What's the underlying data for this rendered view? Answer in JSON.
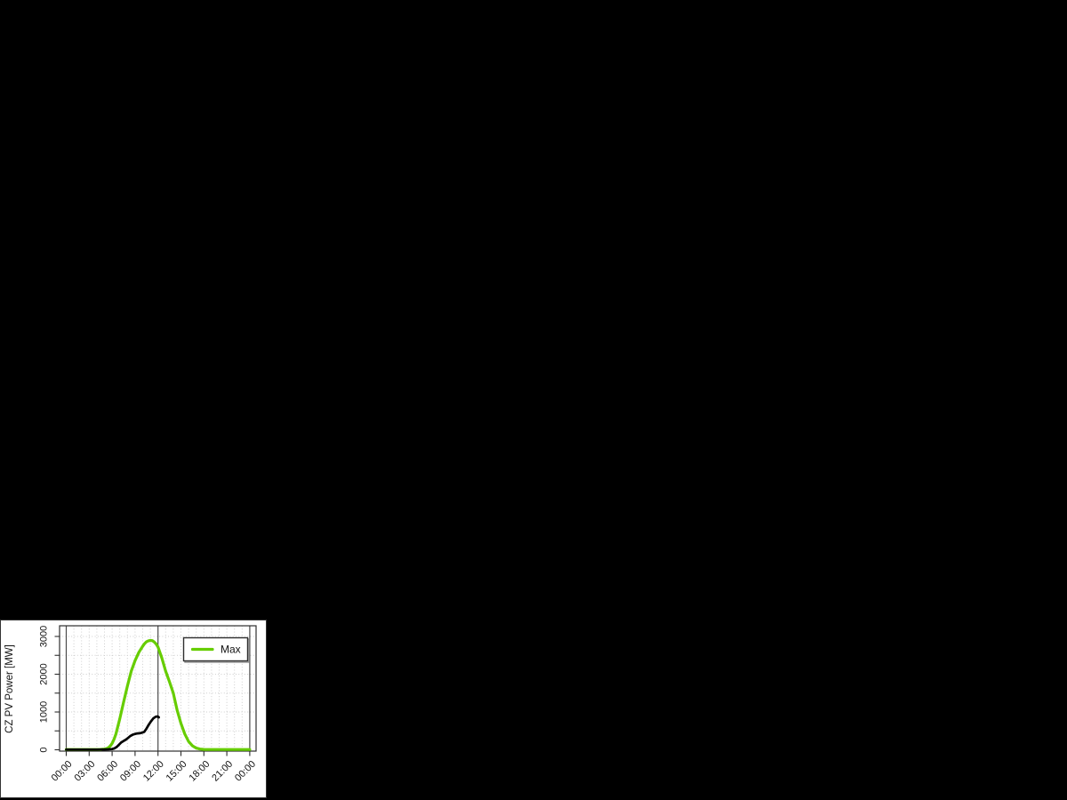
{
  "background_color": "#000000",
  "panel": {
    "bg_color": "#ffffff",
    "border_color": "#333333"
  },
  "chart_data": {
    "type": "line",
    "title": "",
    "xlabel": "",
    "ylabel": "CZ PV Power [MW]",
    "x_tick_labels": [
      "00:00",
      "03:00",
      "06:00",
      "09:00",
      "12:00",
      "15:00",
      "18:00",
      "21:00",
      "00:00"
    ],
    "x_tick_hours": [
      0,
      3,
      6,
      9,
      12,
      15,
      18,
      21,
      24
    ],
    "y_tick_labels": [
      "0",
      "1000",
      "2000",
      "3000"
    ],
    "y_tick_label_values": [
      0,
      1000,
      2000,
      3000
    ],
    "y_tick_values_all": [
      0,
      500,
      1000,
      1500,
      2000,
      2500,
      3000
    ],
    "xlim_hours": [
      0,
      24
    ],
    "ylim": [
      0,
      3000
    ],
    "grid": {
      "visible": true,
      "line_style": "dotted",
      "color": "#c9c9c9",
      "vertical_interval_hours": 1,
      "horizontal_interval_mw": 500
    },
    "reference_vlines_hours": [
      0,
      12,
      24
    ],
    "reference_vline_color": "#4a4a4a",
    "axis_color": "#2e2e2e",
    "label_color": "#111111",
    "legend": {
      "position": "top-right",
      "entries": [
        {
          "label": "Max",
          "color": "#66CD00"
        }
      ]
    },
    "series": [
      {
        "legend_label": "Max",
        "color": "#66CD00",
        "stroke_width": 3.2,
        "points": [
          [
            0,
            8
          ],
          [
            0.5,
            8
          ],
          [
            1,
            8
          ],
          [
            1.5,
            8
          ],
          [
            2,
            8
          ],
          [
            2.5,
            8
          ],
          [
            3,
            8
          ],
          [
            3.5,
            8
          ],
          [
            4,
            8
          ],
          [
            4.5,
            10
          ],
          [
            5,
            18
          ],
          [
            5.25,
            30
          ],
          [
            5.5,
            55
          ],
          [
            5.75,
            100
          ],
          [
            6,
            170
          ],
          [
            6.25,
            280
          ],
          [
            6.5,
            420
          ],
          [
            7,
            820
          ],
          [
            7.5,
            1260
          ],
          [
            8,
            1690
          ],
          [
            8.5,
            2080
          ],
          [
            9,
            2360
          ],
          [
            9.5,
            2580
          ],
          [
            10,
            2740
          ],
          [
            10.25,
            2810
          ],
          [
            10.5,
            2860
          ],
          [
            10.75,
            2885
          ],
          [
            11,
            2895
          ],
          [
            11.25,
            2890
          ],
          [
            11.5,
            2855
          ],
          [
            11.75,
            2800
          ],
          [
            12,
            2720
          ],
          [
            12.5,
            2430
          ],
          [
            13,
            2080
          ],
          [
            13.5,
            1800
          ],
          [
            14,
            1500
          ],
          [
            14.5,
            1050
          ],
          [
            15,
            700
          ],
          [
            15.5,
            420
          ],
          [
            16,
            220
          ],
          [
            16.5,
            105
          ],
          [
            17,
            45
          ],
          [
            17.5,
            18
          ],
          [
            18,
            10
          ],
          [
            18.5,
            8
          ],
          [
            19,
            8
          ],
          [
            20,
            8
          ],
          [
            21,
            8
          ],
          [
            22,
            8
          ],
          [
            23,
            8
          ],
          [
            24,
            8
          ]
        ]
      },
      {
        "legend_label": null,
        "color": "#000000",
        "stroke_width": 2.7,
        "points": [
          [
            0,
            5
          ],
          [
            0.5,
            5
          ],
          [
            1,
            5
          ],
          [
            1.5,
            5
          ],
          [
            2,
            5
          ],
          [
            2.5,
            5
          ],
          [
            3,
            5
          ],
          [
            3.5,
            5
          ],
          [
            4,
            5
          ],
          [
            4.5,
            6
          ],
          [
            5,
            8
          ],
          [
            5.5,
            12
          ],
          [
            6,
            20
          ],
          [
            6.3,
            38
          ],
          [
            6.6,
            75
          ],
          [
            6.9,
            135
          ],
          [
            7.2,
            195
          ],
          [
            7.5,
            232
          ],
          [
            7.8,
            268
          ],
          [
            8.1,
            318
          ],
          [
            8.4,
            368
          ],
          [
            8.7,
            400
          ],
          [
            9,
            418
          ],
          [
            9.3,
            432
          ],
          [
            9.6,
            437
          ],
          [
            9.9,
            452
          ],
          [
            10.2,
            472
          ],
          [
            10.5,
            562
          ],
          [
            10.8,
            668
          ],
          [
            11.1,
            758
          ],
          [
            11.4,
            832
          ],
          [
            11.7,
            876
          ],
          [
            11.95,
            882
          ],
          [
            12.1,
            858
          ]
        ]
      }
    ]
  }
}
